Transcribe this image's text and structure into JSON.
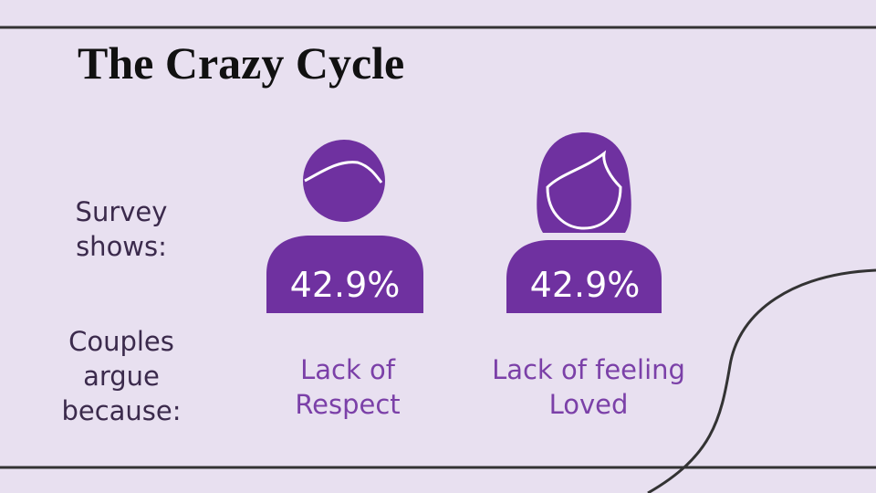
{
  "header": {
    "title": "The Crazy Cycle"
  },
  "left_labels": [
    "Survey shows:",
    "Couples argue because:"
  ],
  "figures": [
    {
      "percent": "42.9%",
      "label": "Lack of Respect"
    },
    {
      "percent": "42.9%",
      "label": "Lack of feeling Loved"
    }
  ]
}
